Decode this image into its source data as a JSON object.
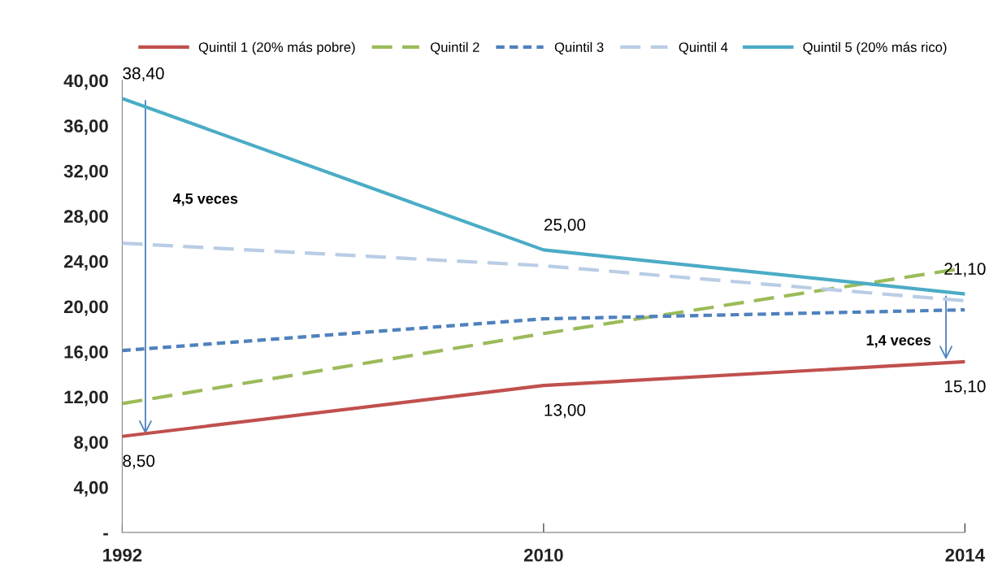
{
  "chart_data": {
    "type": "line",
    "categories": [
      "1992",
      "2010",
      "2014"
    ],
    "series": [
      {
        "name": "Quintil 1 (20% más pobre)",
        "color": "#c0504d",
        "line_style": "solid",
        "values": [
          8.5,
          13.0,
          15.1
        ],
        "value_labels": [
          "8,50",
          "13,00",
          "15,10"
        ]
      },
      {
        "name": "Quintil 2",
        "color": "#9bbb59",
        "line_style": "dashed",
        "values": [
          11.4,
          17.6,
          23.4
        ]
      },
      {
        "name": "Quintil 3",
        "color": "#4f81bd",
        "line_style": "dotted",
        "values": [
          16.1,
          18.9,
          19.7
        ]
      },
      {
        "name": "Quintil 4",
        "color": "#b9cde5",
        "line_style": "dashed",
        "values": [
          25.6,
          23.6,
          20.5
        ]
      },
      {
        "name": "Quintil 5 (20% más rico)",
        "color": "#4bacc6",
        "line_style": "solid",
        "values": [
          38.4,
          25.0,
          21.1
        ],
        "value_labels": [
          "38,40",
          "25,00",
          "21,10"
        ]
      }
    ],
    "ylim": [
      0,
      40
    ],
    "yticks": [
      {
        "value": 0,
        "label": "-"
      },
      {
        "value": 4,
        "label": "4,00"
      },
      {
        "value": 8,
        "label": "8,00"
      },
      {
        "value": 12,
        "label": "12,00"
      },
      {
        "value": 16,
        "label": "16,00"
      },
      {
        "value": 20,
        "label": "20,00"
      },
      {
        "value": 24,
        "label": "24,00"
      },
      {
        "value": 28,
        "label": "28,00"
      },
      {
        "value": 32,
        "label": "32,00"
      },
      {
        "value": 36,
        "label": "36,00"
      },
      {
        "value": 40,
        "label": "40,00"
      }
    ],
    "annotations": [
      "4,5 veces",
      {
        "text": "1,4 veces",
        "x": "2014",
        "y": 15.1
      }
    ],
    "grid": false,
    "legend": "top",
    "marker": "none"
  }
}
